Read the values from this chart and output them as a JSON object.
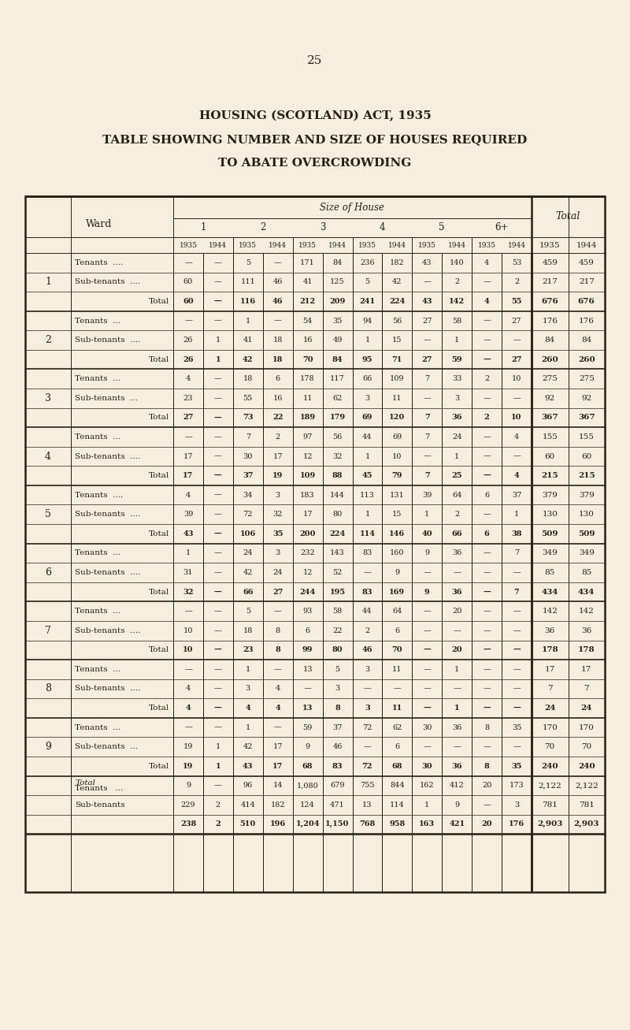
{
  "page_number": "25",
  "title_line1": "HOUSING (SCOTLAND) ACT, 1935",
  "title_line2": "TABLE SHOWING NUMBER AND SIZE OF HOUSES REQUIRED",
  "title_line3": "TO ABATE OVERCROWDING",
  "background_color": "#f5f0dc",
  "text_color": "#2a2010",
  "header_size_of_house": "Size of House",
  "header_ward": "Ward",
  "header_total": "Total",
  "col_headers_size": [
    "1",
    "2",
    "3",
    "4",
    "5",
    "6+"
  ],
  "year_headers": [
    "1935",
    "1944"
  ],
  "rows": [
    {
      "ward": "1",
      "type_rows": [
        {
          "label": "Tenants",
          "dots": "....",
          "values": [
            "—",
            "—",
            "5",
            "—",
            "171",
            "84",
            "236",
            "182",
            "43",
            "140",
            "4",
            "53",
            "459",
            "459"
          ]
        },
        {
          "label": "Sub-tenants",
          "dots": "....",
          "values": [
            "60",
            "—",
            "111",
            "46",
            "41",
            "125",
            "5",
            "42",
            "—",
            "2",
            "—",
            "2",
            "217",
            "217"
          ]
        },
        {
          "label": "Total",
          "dots": "",
          "values": [
            "60",
            "—",
            "116",
            "46",
            "212",
            "209",
            "241",
            "224",
            "43",
            "142",
            "4",
            "55",
            "676",
            "676"
          ]
        }
      ]
    },
    {
      "ward": "2",
      "type_rows": [
        {
          "label": "Tenants",
          "dots": "...",
          "values": [
            "—",
            "—",
            "1",
            "—",
            "54",
            "35",
            "94",
            "56",
            "27",
            "58",
            "—",
            "27",
            "176",
            "176"
          ]
        },
        {
          "label": "Sub-tenants",
          "dots": "....",
          "values": [
            "26",
            "1",
            "41",
            "18",
            "16",
            "49",
            "1",
            "15",
            "—",
            "1",
            "—",
            "—",
            "84",
            "84"
          ]
        },
        {
          "label": "Total",
          "dots": "",
          "values": [
            "26",
            "1",
            "42",
            "18",
            "70",
            "84",
            "95",
            "71",
            "27",
            "59",
            "—",
            "27",
            "260",
            "260"
          ]
        }
      ]
    },
    {
      "ward": "3",
      "type_rows": [
        {
          "label": "Tenants",
          "dots": "...",
          "values": [
            "4",
            "—",
            "18",
            "6",
            "178",
            "117",
            "66",
            "109",
            "7",
            "33",
            "2",
            "10",
            "275",
            "275"
          ]
        },
        {
          "label": "Sub-tenants",
          "dots": "...",
          "values": [
            "23",
            "—",
            "55",
            "16",
            "11",
            "62",
            "3",
            "11",
            "—",
            "3",
            "—",
            "—",
            "92",
            "92"
          ]
        },
        {
          "label": "Total",
          "dots": "",
          "values": [
            "27",
            "—",
            "73",
            "22",
            "189",
            "179",
            "69",
            "120",
            "7",
            "36",
            "2",
            "10",
            "367",
            "367"
          ]
        }
      ]
    },
    {
      "ward": "4",
      "type_rows": [
        {
          "label": "Tenants",
          "dots": "...",
          "values": [
            "—",
            "—",
            "7",
            "2",
            "97",
            "56",
            "44",
            "69",
            "7",
            "24",
            "—",
            "4",
            "155",
            "155"
          ]
        },
        {
          "label": "Sub-tenants",
          "dots": "....",
          "values": [
            "17",
            "—",
            "30",
            "17",
            "12",
            "32",
            "1",
            "10",
            "—",
            "1",
            "—",
            "—",
            "60",
            "60"
          ]
        },
        {
          "label": "Total",
          "dots": "",
          "values": [
            "17",
            "—",
            "37",
            "19",
            "109",
            "88",
            "45",
            "79",
            "7",
            "25",
            "—",
            "4",
            "215",
            "215"
          ]
        }
      ]
    },
    {
      "ward": "5",
      "type_rows": [
        {
          "label": "Tenants",
          "dots": "....",
          "values": [
            "4",
            "—",
            "34",
            "3",
            "183",
            "144",
            "113",
            "131",
            "39",
            "64",
            "6",
            "37",
            "379",
            "379"
          ]
        },
        {
          "label": "Sub-tenants",
          "dots": "....",
          "values": [
            "39",
            "—",
            "72",
            "32",
            "17",
            "80",
            "1",
            "15",
            "1",
            "2",
            "—",
            "1",
            "130",
            "130"
          ]
        },
        {
          "label": "Total",
          "dots": "",
          "values": [
            "43",
            "—",
            "106",
            "35",
            "200",
            "224",
            "114",
            "146",
            "40",
            "66",
            "6",
            "38",
            "509",
            "509"
          ]
        }
      ]
    },
    {
      "ward": "6",
      "type_rows": [
        {
          "label": "Tenants",
          "dots": "...",
          "values": [
            "1",
            "—",
            "24",
            "3",
            "232",
            "143",
            "83",
            "160",
            "9",
            "36",
            "—",
            "7",
            "349",
            "349"
          ]
        },
        {
          "label": "Sub-tenants",
          "dots": "....",
          "values": [
            "31",
            "—",
            "42",
            "24",
            "12",
            "52",
            "—",
            "9",
            "—",
            "—",
            "—",
            "—",
            "85",
            "85"
          ]
        },
        {
          "label": "Total",
          "dots": "",
          "values": [
            "32",
            "—",
            "66",
            "27",
            "244",
            "195",
            "83",
            "169",
            "9",
            "36",
            "—",
            "7",
            "434",
            "434"
          ]
        }
      ]
    },
    {
      "ward": "7",
      "type_rows": [
        {
          "label": "Tenants",
          "dots": "...",
          "values": [
            "—",
            "—",
            "5",
            "—",
            "93",
            "58",
            "44",
            "64",
            "—",
            "20",
            "—",
            "—",
            "142",
            "142"
          ]
        },
        {
          "label": "Sub-tenants",
          "dots": "....",
          "values": [
            "10",
            "—",
            "18",
            "8",
            "6",
            "22",
            "2",
            "6",
            "—",
            "—",
            "—",
            "—",
            "36",
            "36"
          ]
        },
        {
          "label": "Total",
          "dots": "",
          "values": [
            "10",
            "—",
            "23",
            "8",
            "99",
            "80",
            "46",
            "70",
            "—",
            "20",
            "—",
            "—",
            "178",
            "178"
          ]
        }
      ]
    },
    {
      "ward": "8",
      "type_rows": [
        {
          "label": "Tenants",
          "dots": "...",
          "values": [
            "—",
            "—",
            "1",
            "—",
            "13",
            "5",
            "3",
            "11",
            "—",
            "1",
            "—",
            "—",
            "17",
            "17"
          ]
        },
        {
          "label": "Sub-tenants",
          "dots": "....",
          "values": [
            "4",
            "—",
            "3",
            "4",
            "—",
            "3",
            "—",
            "—",
            "—",
            "—",
            "—",
            "—",
            "7",
            "7"
          ]
        },
        {
          "label": "Total",
          "dots": "",
          "values": [
            "4",
            "—",
            "4",
            "4",
            "13",
            "8",
            "3",
            "11",
            "—",
            "1",
            "—",
            "—",
            "24",
            "24"
          ]
        }
      ]
    },
    {
      "ward": "9",
      "type_rows": [
        {
          "label": "Tenants",
          "dots": "...",
          "values": [
            "—",
            "—",
            "1",
            "—",
            "59",
            "37",
            "72",
            "62",
            "30",
            "36",
            "8",
            "35",
            "170",
            "170"
          ]
        },
        {
          "label": "Sub-tenants",
          "dots": "...",
          "values": [
            "19",
            "1",
            "42",
            "17",
            "9",
            "46",
            "—",
            "6",
            "—",
            "—",
            "—",
            "—",
            "70",
            "70"
          ]
        },
        {
          "label": "Total",
          "dots": "",
          "values": [
            "19",
            "1",
            "43",
            "17",
            "68",
            "83",
            "72",
            "68",
            "30",
            "36",
            "8",
            "35",
            "240",
            "240"
          ]
        }
      ]
    },
    {
      "ward": "Total",
      "type_rows": [
        {
          "label": "Total\nTenants",
          "dots": "...",
          "values": [
            "9",
            "—",
            "96",
            "14",
            "1,080",
            "679",
            "755",
            "844",
            "162",
            "412",
            "20",
            "173",
            "2,122",
            "2,122"
          ]
        },
        {
          "label": "Sub-tenants",
          "dots": "",
          "values": [
            "229",
            "2",
            "414",
            "182",
            "124",
            "471",
            "13",
            "114",
            "1",
            "9",
            "—",
            "3",
            "781",
            "781"
          ]
        },
        {
          "label": "",
          "dots": "",
          "values": [
            "238",
            "2",
            "510",
            "196",
            "1,204",
            "1,150",
            "768",
            "958",
            "163",
            "421",
            "20",
            "176",
            "2,903",
            "2,903"
          ]
        }
      ]
    }
  ]
}
